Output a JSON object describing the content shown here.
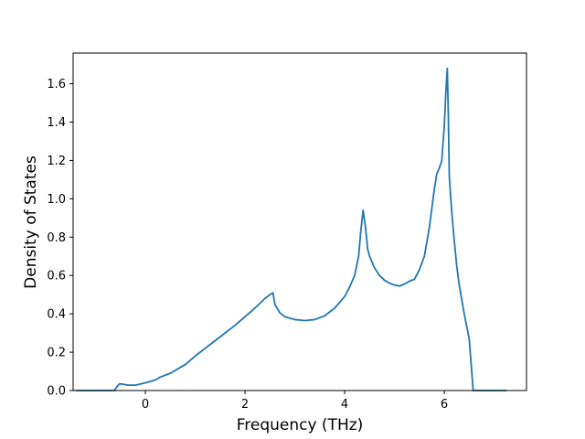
{
  "chart_data": {
    "type": "line",
    "title": "",
    "xlabel": "Frequency (THz)",
    "ylabel": "Density of States",
    "xlim": [
      -1.45,
      7.65
    ],
    "ylim": [
      0.0,
      1.76
    ],
    "xticks": [
      0,
      2,
      4,
      6
    ],
    "xtick_labels": [
      "0",
      "2",
      "4",
      "6"
    ],
    "yticks": [
      0.0,
      0.2,
      0.4,
      0.6,
      0.8,
      1.0,
      1.2,
      1.4,
      1.6
    ],
    "ytick_labels": [
      "0.0",
      "0.2",
      "0.4",
      "0.6",
      "0.8",
      "1.0",
      "1.2",
      "1.4",
      "1.6"
    ],
    "grid": false,
    "legend": "none",
    "series": [
      {
        "color": "#1f77b4",
        "x": [
          -1.4,
          -0.62,
          -0.57,
          -0.52,
          -0.45,
          -0.35,
          -0.2,
          0.0,
          0.2,
          0.3,
          0.5,
          0.7,
          0.8,
          1.0,
          1.2,
          1.4,
          1.6,
          1.8,
          2.0,
          2.2,
          2.4,
          2.5,
          2.56,
          2.6,
          2.7,
          2.8,
          3.0,
          3.2,
          3.4,
          3.6,
          3.8,
          4.0,
          4.1,
          4.2,
          4.28,
          4.32,
          4.37,
          4.42,
          4.46,
          4.5,
          4.6,
          4.7,
          4.8,
          4.9,
          5.0,
          5.1,
          5.2,
          5.3,
          5.4,
          5.5,
          5.6,
          5.7,
          5.8,
          5.85,
          5.9,
          5.95,
          6.0,
          6.03,
          6.06,
          6.08,
          6.1,
          6.15,
          6.2,
          6.25,
          6.3,
          6.4,
          6.5,
          6.58,
          6.65,
          6.8,
          7.0,
          7.25
        ],
        "y": [
          0.0,
          0.0,
          0.02,
          0.035,
          0.033,
          0.028,
          0.028,
          0.04,
          0.055,
          0.07,
          0.09,
          0.12,
          0.135,
          0.18,
          0.22,
          0.26,
          0.3,
          0.34,
          0.385,
          0.43,
          0.48,
          0.5,
          0.51,
          0.45,
          0.405,
          0.385,
          0.37,
          0.365,
          0.37,
          0.39,
          0.43,
          0.49,
          0.54,
          0.6,
          0.7,
          0.82,
          0.94,
          0.85,
          0.74,
          0.7,
          0.64,
          0.6,
          0.575,
          0.56,
          0.55,
          0.545,
          0.555,
          0.57,
          0.58,
          0.63,
          0.7,
          0.85,
          1.05,
          1.13,
          1.16,
          1.2,
          1.38,
          1.55,
          1.68,
          1.45,
          1.12,
          0.93,
          0.78,
          0.65,
          0.55,
          0.4,
          0.27,
          0.0,
          0.0,
          0.0,
          0.0,
          0.0
        ]
      }
    ]
  }
}
